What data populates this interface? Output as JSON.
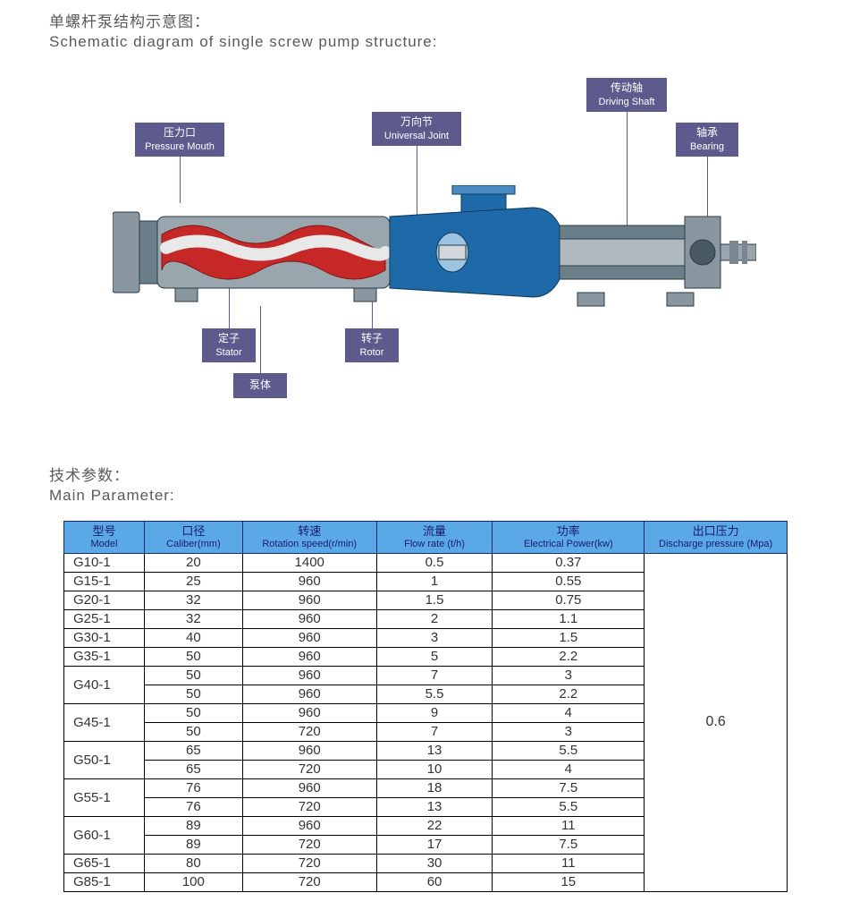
{
  "titles": {
    "schematic_cn": "单螺杆泵结构示意图：",
    "schematic_en": "Schematic diagram of single screw pump structure:",
    "param_cn": "技术参数：",
    "param_en": "Main Parameter:"
  },
  "diagram": {
    "labels": {
      "pressure_mouth": {
        "cn": "压力口",
        "en": "Pressure Mouth",
        "color": "#5d5b8e"
      },
      "universal_joint": {
        "cn": "万向节",
        "en": "Universal Joint",
        "color": "#5d5b8e"
      },
      "driving_shaft": {
        "cn": "传动轴",
        "en": "Driving Shaft",
        "color": "#5d5b8e"
      },
      "bearing": {
        "cn": "轴承",
        "en": "Bearing",
        "color": "#5d5b8e"
      },
      "stator": {
        "cn": "定子",
        "en": "Stator",
        "color": "#5d5b8e"
      },
      "rotor": {
        "cn": "转子",
        "en": "Rotor",
        "color": "#5d5b8e"
      },
      "pump_body": {
        "cn": "泵体",
        "en": "",
        "color": "#5d5b8e"
      }
    },
    "colors": {
      "stator_fill": "#c62828",
      "rotor_housing": "#1e6aa8",
      "shaft_housing": "#6a7f8a",
      "metal": "#9aa6ad",
      "outline": "#2a3b45"
    }
  },
  "table": {
    "headers": {
      "model": {
        "cn": "型号",
        "en": "Model"
      },
      "caliber": {
        "cn": "口径",
        "en": "Caliber(mm)"
      },
      "speed": {
        "cn": "转速",
        "en": "Rotation speed(r/min)"
      },
      "flow": {
        "cn": "流量",
        "en": "Flow rate  (t/h)"
      },
      "power": {
        "cn": "功率",
        "en": "Electrical Power(kw)"
      },
      "pressure": {
        "cn": "出口压力",
        "en": "Discharge pressure (Mpa)"
      }
    },
    "pressure_value": "0.6",
    "rows": [
      {
        "model": "G10-1",
        "caliber": "20",
        "speed": "1400",
        "flow": "0.5",
        "power": "0.37",
        "model_rows": 1
      },
      {
        "model": "G15-1",
        "caliber": "25",
        "speed": "960",
        "flow": "1",
        "power": "0.55",
        "model_rows": 1
      },
      {
        "model": "G20-1",
        "caliber": "32",
        "speed": "960",
        "flow": "1.5",
        "power": "0.75",
        "model_rows": 1
      },
      {
        "model": "G25-1",
        "caliber": "32",
        "speed": "960",
        "flow": "2",
        "power": "1.1",
        "model_rows": 1
      },
      {
        "model": "G30-1",
        "caliber": "40",
        "speed": "960",
        "flow": "3",
        "power": "1.5",
        "model_rows": 1
      },
      {
        "model": "G35-1",
        "caliber": "50",
        "speed": "960",
        "flow": "5",
        "power": "2.2",
        "model_rows": 1
      },
      {
        "model": "G40-1",
        "caliber": "50",
        "speed": "960",
        "flow": "7",
        "power": "3",
        "model_rows": 2
      },
      {
        "model": "",
        "caliber": "50",
        "speed": "960",
        "flow": "5.5",
        "power": "2.2",
        "model_rows": 0
      },
      {
        "model": "G45-1",
        "caliber": "50",
        "speed": "960",
        "flow": "9",
        "power": "4",
        "model_rows": 2
      },
      {
        "model": "",
        "caliber": "50",
        "speed": "720",
        "flow": "7",
        "power": "3",
        "model_rows": 0
      },
      {
        "model": "G50-1",
        "caliber": "65",
        "speed": "960",
        "flow": "13",
        "power": "5.5",
        "model_rows": 2
      },
      {
        "model": "",
        "caliber": "65",
        "speed": "720",
        "flow": "10",
        "power": "4",
        "model_rows": 0
      },
      {
        "model": "G55-1",
        "caliber": "76",
        "speed": "960",
        "flow": "18",
        "power": "7.5",
        "model_rows": 2
      },
      {
        "model": "",
        "caliber": "76",
        "speed": "720",
        "flow": "13",
        "power": "5.5",
        "model_rows": 0
      },
      {
        "model": "G60-1",
        "caliber": "89",
        "speed": "960",
        "flow": "22",
        "power": "11",
        "model_rows": 2
      },
      {
        "model": "",
        "caliber": "89",
        "speed": "720",
        "flow": "17",
        "power": "7.5",
        "model_rows": 0
      },
      {
        "model": "G65-1",
        "caliber": "80",
        "speed": "720",
        "flow": "30",
        "power": "11",
        "model_rows": 1
      },
      {
        "model": "G85-1",
        "caliber": "100",
        "speed": "720",
        "flow": "60",
        "power": "15",
        "model_rows": 1
      }
    ],
    "col_widths": {
      "model": "90px",
      "caliber": "110px",
      "speed": "150px",
      "flow": "130px",
      "power": "170px",
      "pressure": "160px"
    },
    "header_bg": "#5aa9e6",
    "header_fg": "#1a1a6a",
    "border_color": "#000000"
  }
}
